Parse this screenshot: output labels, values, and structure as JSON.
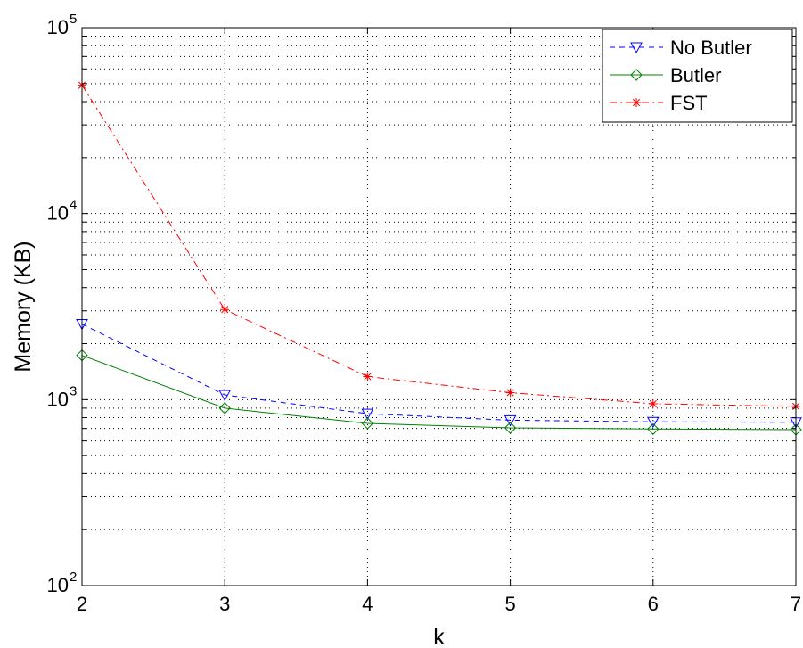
{
  "chart_data": {
    "type": "line",
    "xlabel": "k",
    "ylabel": "Memory (KB)",
    "x": [
      2,
      3,
      4,
      5,
      6,
      7
    ],
    "xlim": [
      2,
      7
    ],
    "ylim": [
      100,
      100000
    ],
    "yscale": "log",
    "grid": true,
    "legend_position": "top-right",
    "x_tick_labels": [
      "2",
      "3",
      "4",
      "5",
      "6",
      "7"
    ],
    "y_ticks": [
      {
        "value": 100,
        "base": "10",
        "exp": "2"
      },
      {
        "value": 1000,
        "base": "10",
        "exp": "3"
      },
      {
        "value": 10000,
        "base": "10",
        "exp": "4"
      },
      {
        "value": 100000,
        "base": "10",
        "exp": "5"
      }
    ],
    "series": [
      {
        "name": "No Butler",
        "color": "#0000ff",
        "marker": "triangle-down",
        "dash": "dashed",
        "values": [
          2550,
          1060,
          840,
          775,
          760,
          755
        ]
      },
      {
        "name": "Butler",
        "color": "#008000",
        "marker": "diamond",
        "dash": "solid",
        "values": [
          1730,
          900,
          745,
          705,
          695,
          690
        ]
      },
      {
        "name": "FST",
        "color": "#ff0000",
        "marker": "asterisk",
        "dash": "dashdot",
        "values": [
          49000,
          3050,
          1330,
          1090,
          950,
          920
        ]
      }
    ]
  }
}
